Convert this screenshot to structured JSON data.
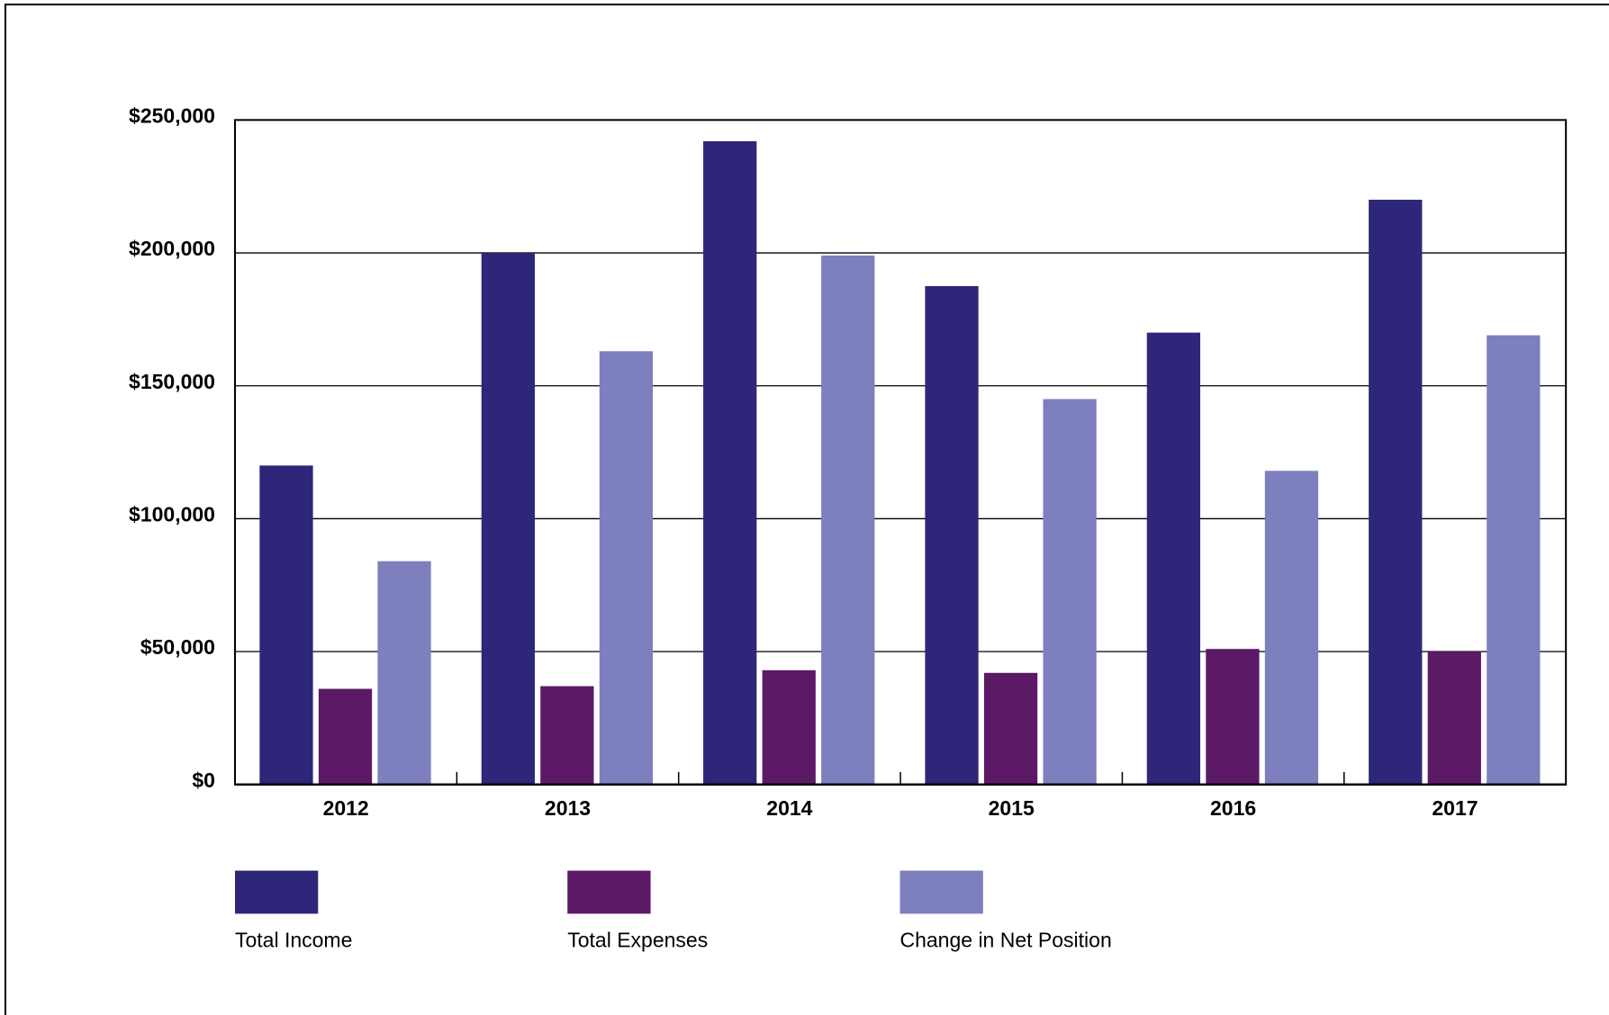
{
  "chart_data": {
    "type": "bar",
    "categories": [
      "2012",
      "2013",
      "2014",
      "2015",
      "2016",
      "2017"
    ],
    "series": [
      {
        "name": "Total Income",
        "color": "#2e2679",
        "values": [
          120000,
          200000,
          242000,
          187500,
          170000,
          220000
        ]
      },
      {
        "name": "Total Expenses",
        "color": "#5c1a66",
        "values": [
          36000,
          37000,
          43000,
          42000,
          51000,
          50000
        ]
      },
      {
        "name": "Change in Net Position",
        "color": "#7d7fbe",
        "values": [
          84000,
          163000,
          199000,
          145000,
          118000,
          169000
        ]
      }
    ],
    "ylim": [
      0,
      250000
    ],
    "yticks": [
      {
        "value": 0,
        "label": "$0"
      },
      {
        "value": 50000,
        "label": "$50,000"
      },
      {
        "value": 100000,
        "label": "$100,000"
      },
      {
        "value": 150000,
        "label": "$150,000"
      },
      {
        "value": 200000,
        "label": "$200,000"
      },
      {
        "value": 250000,
        "label": "$250,000"
      }
    ],
    "grid": true,
    "legend": "bottom"
  }
}
